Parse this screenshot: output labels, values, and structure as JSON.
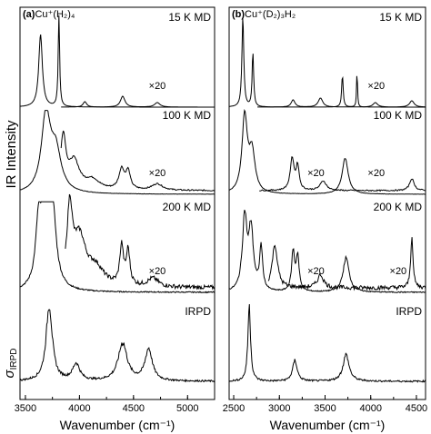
{
  "figure": {
    "ylabel_top": "IR Intensity",
    "ylabel_bottom": "σ",
    "ylabel_bottom_sub": "IRPD"
  },
  "chart_data": [
    {
      "type": "line",
      "panel_letter": "(a)",
      "panel_title": "Cu⁺(H₂)₄",
      "xlabel": "Wavenumber (cm⁻¹)",
      "xlim": [
        3450,
        5250
      ],
      "xticks": [
        3500,
        4000,
        4500,
        5000
      ],
      "xtick_labels": [
        "3500",
        "4000",
        "4500",
        "5000"
      ],
      "traces": [
        {
          "label": "15 K MD",
          "scale_label": "×20",
          "main_peaks": [
            [
              3640,
              0.8,
              20
            ],
            [
              3810,
              1.0,
              8
            ]
          ],
          "scaled_start": 3830,
          "scaled_peaks": [
            [
              4050,
              0.06,
              20
            ],
            [
              4400,
              0.12,
              25
            ],
            [
              4720,
              0.05,
              30
            ]
          ],
          "noise": 0
        },
        {
          "label": "100 K MD",
          "scale_label": "×20",
          "main_peaks": [
            [
              3690,
              0.95,
              50
            ],
            [
              3780,
              0.5,
              60
            ]
          ],
          "scaled_start": 3830,
          "scaled_peaks": [
            [
              3850,
              0.65,
              30
            ],
            [
              3950,
              0.35,
              60
            ],
            [
              4120,
              0.12,
              80
            ],
            [
              4390,
              0.25,
              30
            ],
            [
              4450,
              0.22,
              25
            ],
            [
              4720,
              0.08,
              60
            ]
          ],
          "noise": 0.02
        },
        {
          "label": "200 K MD",
          "scale_label": "×20",
          "main_peaks": [
            [
              3680,
              0.95,
              45
            ],
            [
              3750,
              0.85,
              40
            ],
            [
              3620,
              0.6,
              30
            ]
          ],
          "scaled_start": 3870,
          "scaled_peaks": [
            [
              3910,
              0.85,
              30
            ],
            [
              4000,
              0.55,
              70
            ],
            [
              4150,
              0.2,
              90
            ],
            [
              4390,
              0.45,
              20
            ],
            [
              4450,
              0.4,
              20
            ],
            [
              4680,
              0.1,
              60
            ]
          ],
          "noise": 0.06
        },
        {
          "label": "IRPD",
          "scale_label": "",
          "main_peaks": [
            [
              3720,
              0.9,
              35
            ],
            [
              3970,
              0.2,
              40
            ],
            [
              4400,
              0.45,
              50
            ],
            [
              4640,
              0.38,
              40
            ]
          ],
          "scaled_start": null,
          "scaled_peaks": [],
          "noise": 0.07
        }
      ]
    },
    {
      "type": "line",
      "panel_letter": "(b)",
      "panel_title": "Cu⁺(D₂)₃H₂",
      "xlabel": "Wavenumber (cm⁻¹)",
      "xlim": [
        2450,
        4600
      ],
      "xticks": [
        2500,
        3000,
        3500,
        4000,
        4500
      ],
      "xtick_labels": [
        "2500",
        "3000",
        "3500",
        "4000",
        "4500"
      ],
      "traces": [
        {
          "label": "15 K MD",
          "scale_label": "×20",
          "main_peaks": [
            [
              2600,
              1.0,
              12
            ],
            [
              2710,
              0.6,
              10
            ],
            [
              3690,
              0.35,
              10
            ],
            [
              3850,
              0.4,
              6
            ]
          ],
          "scaled_start": 2760,
          "scaled_peaks": [
            [
              3150,
              0.08,
              25
            ],
            [
              3450,
              0.1,
              30
            ],
            [
              4050,
              0.05,
              30
            ],
            [
              4450,
              0.07,
              30
            ]
          ],
          "noise": 0
        },
        {
          "label": "100 K MD",
          "scale_label": "×20",
          "main_peaks": [
            [
              2620,
              0.95,
              35
            ],
            [
              2700,
              0.5,
              40
            ],
            [
              3720,
              0.45,
              40
            ]
          ],
          "scaled_start": 2780,
          "scaled_peaks": [
            [
              3140,
              0.4,
              25
            ],
            [
              3200,
              0.3,
              20
            ],
            [
              3480,
              0.12,
              40
            ],
            [
              4450,
              0.15,
              30
            ]
          ],
          "noise": 0.02
        },
        {
          "label": "200 K MD",
          "scale_label": "×20",
          "main_peaks": [
            [
              2620,
              0.85,
              30
            ],
            [
              2690,
              0.7,
              30
            ],
            [
              2800,
              0.5,
              20
            ],
            [
              3150,
              0.45,
              20
            ],
            [
              3200,
              0.4,
              20
            ],
            [
              3730,
              0.4,
              40
            ]
          ],
          "scaled_start": 2880,
          "scaled_peaks": [
            [
              2950,
              0.5,
              35
            ],
            [
              3450,
              0.15,
              40
            ],
            [
              4450,
              0.6,
              15
            ]
          ],
          "noise": 0.06
        },
        {
          "label": "IRPD",
          "scale_label": "",
          "main_peaks": [
            [
              2670,
              0.9,
              18
            ],
            [
              3170,
              0.25,
              30
            ],
            [
              3730,
              0.32,
              40
            ]
          ],
          "scaled_start": null,
          "scaled_peaks": [],
          "noise": 0.07
        }
      ]
    }
  ]
}
